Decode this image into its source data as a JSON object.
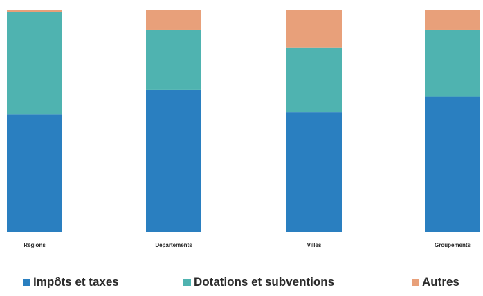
{
  "chart_data": {
    "type": "bar",
    "stacked": true,
    "percent_stacked": true,
    "title": "",
    "xlabel": "",
    "ylabel": "",
    "ylim": [
      0,
      100
    ],
    "grid": false,
    "legend_position": "bottom",
    "categories": [
      "Régions",
      "Départements",
      "Villes",
      "Groupements"
    ],
    "series": [
      {
        "name": "Impôts et taxes",
        "color": "#2a7fc0",
        "values": [
          53,
          64,
          54,
          61
        ]
      },
      {
        "name": "Dotations et subventions",
        "color": "#4fb3b0",
        "values": [
          46,
          27,
          29,
          30
        ]
      },
      {
        "name": "Autres",
        "color": "#e8a07a",
        "values": [
          1,
          9,
          17,
          9
        ]
      }
    ]
  }
}
